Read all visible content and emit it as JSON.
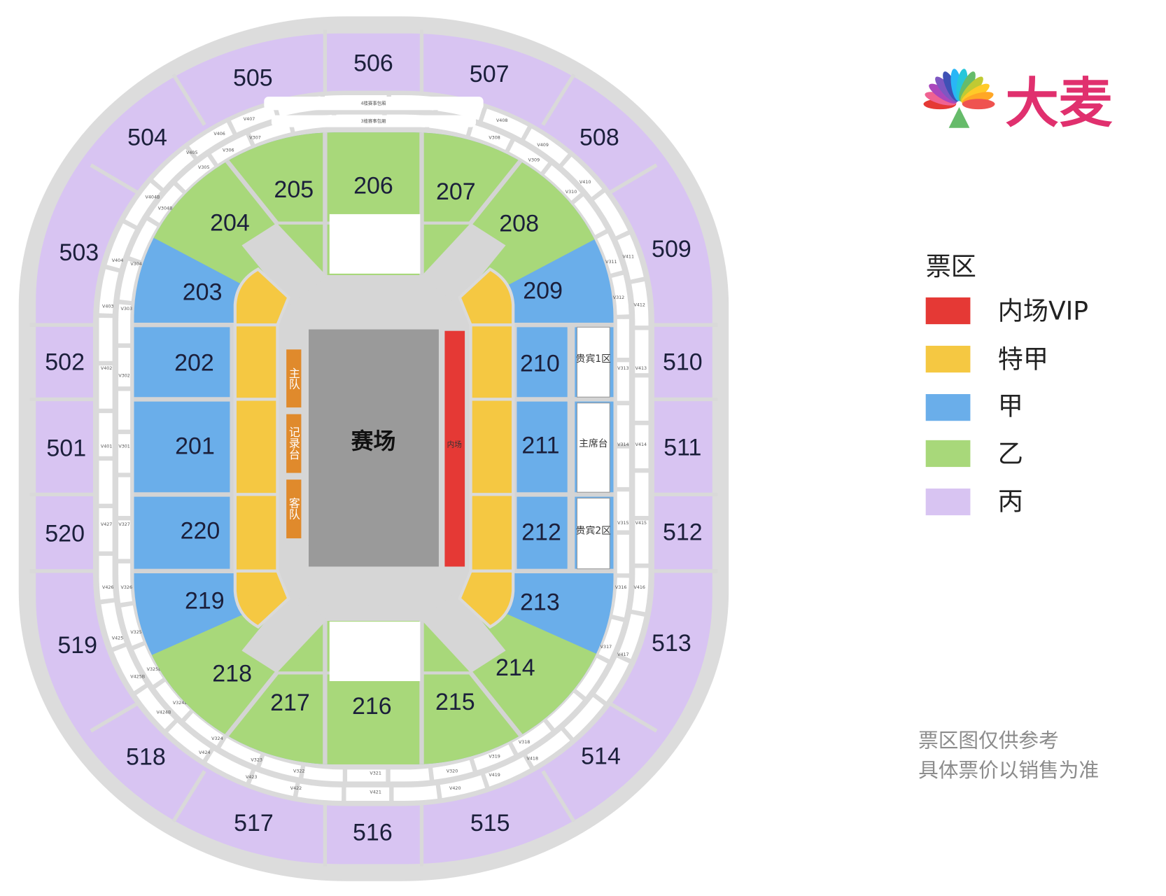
{
  "brand": {
    "name": "大麦",
    "color": "#e0306e"
  },
  "legend": {
    "title": "票区",
    "items": [
      {
        "label": "内场VIP",
        "color": "#e53935"
      },
      {
        "label": "特甲",
        "color": "#f5c842"
      },
      {
        "label": "甲",
        "color": "#6aaeea"
      },
      {
        "label": "乙",
        "color": "#a8d87a"
      },
      {
        "label": "丙",
        "color": "#d8c4f2"
      }
    ]
  },
  "note": {
    "line1": "票区图仅供参考",
    "line2": "具体票价以销售为准"
  },
  "court": {
    "label": "赛场",
    "inner_field": "内场"
  },
  "benches": {
    "home": "主队",
    "scorer": "记录台",
    "away": "客队"
  },
  "boxes": {
    "vip1": "贵宾1区",
    "main_stand": "主席台",
    "vip2": "贵宾2区",
    "floor4": "4楼赛事包厢",
    "floor3": "3楼赛事包厢"
  },
  "sections": {
    "s501": "501",
    "s502": "502",
    "s503": "503",
    "s504": "504",
    "s505": "505",
    "s506": "506",
    "s507": "507",
    "s508": "508",
    "s509": "509",
    "s510": "510",
    "s511": "511",
    "s512": "512",
    "s513": "513",
    "s514": "514",
    "s515": "515",
    "s516": "516",
    "s517": "517",
    "s518": "518",
    "s519": "519",
    "s520": "520",
    "s201": "201",
    "s202": "202",
    "s203": "203",
    "s204": "204",
    "s205": "205",
    "s206": "206",
    "s207": "207",
    "s208": "208",
    "s209": "209",
    "s210": "210",
    "s211": "211",
    "s212": "212",
    "s213": "213",
    "s214": "214",
    "s215": "215",
    "s216": "216",
    "s217": "217",
    "s218": "218",
    "s219": "219",
    "s220": "220"
  },
  "vip_boxes": [
    "V407",
    "V406",
    "V405",
    "V404B",
    "V404",
    "V403",
    "V402",
    "V401",
    "V427",
    "V426",
    "V425",
    "V425B",
    "V424B",
    "V424",
    "V423",
    "V422",
    "V421",
    "V420",
    "V419",
    "V418",
    "V417",
    "V416",
    "V415",
    "V414",
    "V413",
    "V412",
    "V411",
    "V410",
    "V409",
    "V408",
    "V307",
    "V306",
    "V305",
    "V304B",
    "V304",
    "V303",
    "V302",
    "V301",
    "V327",
    "V326",
    "V325",
    "V325B",
    "V324B",
    "V324",
    "V323",
    "V322",
    "V321",
    "V320",
    "V319",
    "V318",
    "V317",
    "V316",
    "V315",
    "V314",
    "V313",
    "V312",
    "V311",
    "V310",
    "V309",
    "V308"
  ]
}
